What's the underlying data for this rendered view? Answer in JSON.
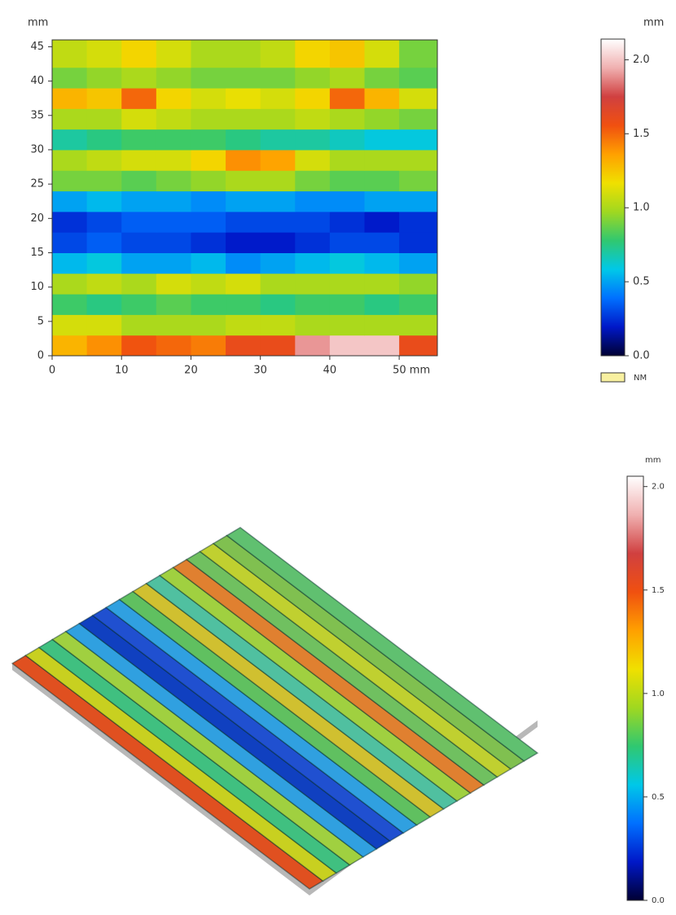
{
  "chart_data": [
    {
      "type": "heatmap",
      "y_label": "mm",
      "x": [
        2.5,
        7.5,
        12.5,
        17.5,
        22.5,
        27.5,
        32.5,
        37.5,
        42.5,
        47.5,
        52.5
      ],
      "y": [
        1.5,
        4.5,
        7.5,
        10.5,
        13.5,
        16.5,
        19.5,
        22.5,
        25.5,
        28.5,
        31.5,
        34.5,
        37.5,
        40.5,
        43.5
      ],
      "z": [
        [
          1.3,
          1.4,
          1.55,
          1.5,
          1.45,
          1.6,
          1.6,
          1.9,
          2.0,
          2.0,
          1.6
        ],
        [
          1.1,
          1.1,
          1.0,
          1.0,
          1.0,
          1.05,
          1.05,
          1.0,
          1.0,
          1.0,
          1.0
        ],
        [
          0.8,
          0.75,
          0.8,
          0.85,
          0.8,
          0.8,
          0.75,
          0.8,
          0.8,
          0.75,
          0.8
        ],
        [
          1.0,
          1.05,
          1.0,
          1.1,
          1.05,
          1.1,
          1.0,
          1.0,
          1.0,
          1.0,
          0.95
        ],
        [
          0.55,
          0.6,
          0.5,
          0.5,
          0.55,
          0.45,
          0.5,
          0.55,
          0.6,
          0.55,
          0.5
        ],
        [
          0.3,
          0.35,
          0.3,
          0.3,
          0.25,
          0.2,
          0.2,
          0.25,
          0.3,
          0.3,
          0.25
        ],
        [
          0.25,
          0.3,
          0.35,
          0.35,
          0.35,
          0.3,
          0.3,
          0.3,
          0.25,
          0.2,
          0.25
        ],
        [
          0.5,
          0.55,
          0.5,
          0.5,
          0.45,
          0.5,
          0.5,
          0.45,
          0.45,
          0.5,
          0.5
        ],
        [
          0.9,
          0.9,
          0.85,
          0.9,
          0.95,
          1.0,
          1.0,
          0.9,
          0.85,
          0.85,
          0.9
        ],
        [
          1.0,
          1.05,
          1.1,
          1.1,
          1.2,
          1.4,
          1.35,
          1.1,
          1.0,
          1.0,
          1.0
        ],
        [
          0.7,
          0.75,
          0.8,
          0.8,
          0.8,
          0.75,
          0.7,
          0.7,
          0.65,
          0.6,
          0.6
        ],
        [
          1.0,
          1.0,
          1.1,
          1.05,
          1.0,
          1.0,
          1.0,
          1.05,
          1.0,
          0.95,
          0.9
        ],
        [
          1.3,
          1.25,
          1.5,
          1.2,
          1.1,
          1.15,
          1.1,
          1.2,
          1.5,
          1.3,
          1.1
        ],
        [
          0.9,
          0.95,
          1.0,
          0.95,
          0.9,
          0.9,
          0.9,
          0.95,
          1.0,
          0.9,
          0.85
        ],
        [
          1.05,
          1.1,
          1.2,
          1.1,
          1.0,
          1.0,
          1.05,
          1.2,
          1.25,
          1.1,
          0.9
        ]
      ],
      "xlim": [
        0,
        55.5
      ],
      "ylim": [
        0,
        46
      ],
      "xticks": [
        0,
        10,
        20,
        30,
        40,
        {
          "value": 50,
          "label": "50 mm"
        }
      ],
      "yticks": [
        0,
        5,
        10,
        15,
        20,
        25,
        30,
        35,
        40,
        45
      ],
      "colorbar_label": "mm",
      "zlim": [
        0,
        2.14
      ],
      "zticks": [
        {
          "value": 0,
          "label": "0.0"
        },
        {
          "value": 0.5,
          "label": "0.5"
        },
        {
          "value": 1,
          "label": "1.0"
        },
        {
          "value": 1.5,
          "label": "1.5"
        },
        {
          "value": 2,
          "label": "2.0"
        }
      ],
      "colormap": [
        "#000033",
        "#0018c8",
        "#0070ff",
        "#00c8e8",
        "#30c870",
        "#a0d820",
        "#f0e000",
        "#ffa000",
        "#f05010",
        "#d04040",
        "#f0b0b0",
        "#ffffff"
      ],
      "legend": {
        "label": "NM",
        "color": "#f8f0a0"
      }
    },
    {
      "type": "surface",
      "colorbar_label": "mm",
      "zlim": [
        0,
        2.05
      ],
      "zticks": [
        {
          "value": 0,
          "label": "0.0"
        },
        {
          "value": 0.5,
          "label": "0.5"
        },
        {
          "value": 1,
          "label": "1.0"
        },
        {
          "value": 1.5,
          "label": "1.5"
        },
        {
          "value": 2,
          "label": "2.0"
        }
      ],
      "colormap": [
        "#000033",
        "#0018c8",
        "#0070ff",
        "#00c8e8",
        "#30c870",
        "#a0d820",
        "#f0e000",
        "#ffa000",
        "#f05010",
        "#d04040",
        "#f0b0b0",
        "#ffffff"
      ]
    }
  ]
}
